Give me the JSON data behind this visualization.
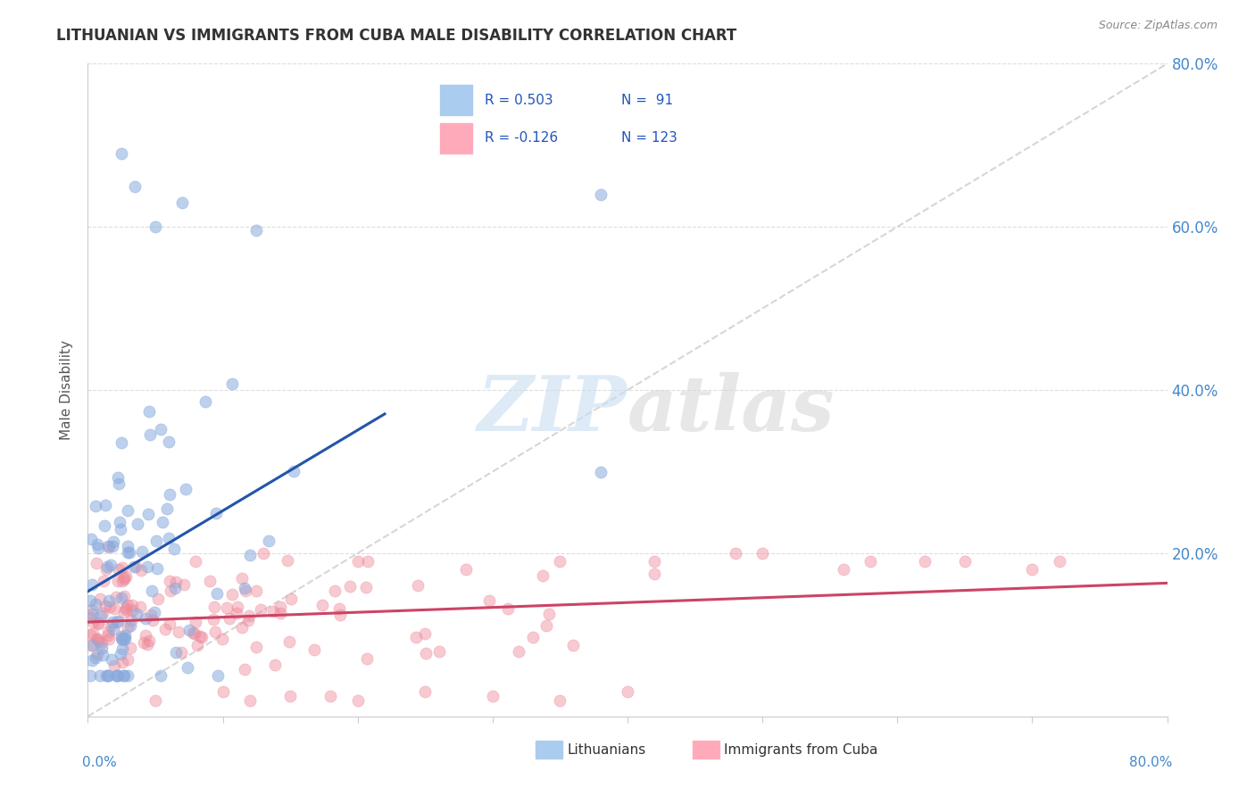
{
  "title": "LITHUANIAN VS IMMIGRANTS FROM CUBA MALE DISABILITY CORRELATION CHART",
  "source": "Source: ZipAtlas.com",
  "ylabel": "Male Disability",
  "blue_color": "#88aadd",
  "pink_color": "#ee8899",
  "blue_line_color": "#2255aa",
  "pink_line_color": "#cc4466",
  "dashed_line_color": "#cccccc",
  "xmin": 0.0,
  "xmax": 0.8,
  "ymin": 0.0,
  "ymax": 0.8,
  "R_blue": 0.503,
  "N_blue": 91,
  "R_pink": -0.126,
  "N_pink": 123,
  "yticks": [
    0.0,
    0.2,
    0.4,
    0.6,
    0.8
  ],
  "legend_color_blue": "#aaccee",
  "legend_color_pink": "#ffaabb",
  "legend_text_color": "#2255bb",
  "watermark_zip_color": "#c8dff0",
  "watermark_atlas_color": "#d5d5d5",
  "title_color": "#333333",
  "source_color": "#888888",
  "ylabel_color": "#555555",
  "axis_label_color": "#4488cc",
  "grid_color": "#dddddd",
  "spine_color": "#cccccc"
}
